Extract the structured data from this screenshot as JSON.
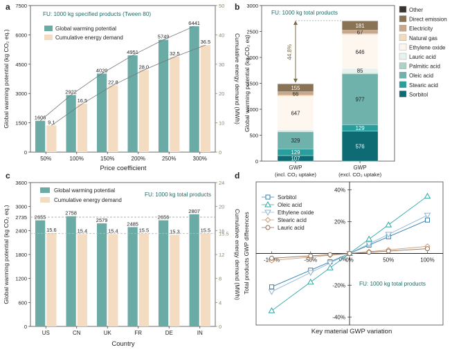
{
  "chart_data": [
    {
      "panel": "a",
      "type": "bar",
      "title": "FU: 1000 kg specified products (Tween 80)",
      "xlabel": "Price coefficient",
      "ylabel": "Global warming potential (kg CO₂ eq.)",
      "y2label": "Cumulative energy demand (MWh)",
      "categories": [
        "50%",
        "100%",
        "150%",
        "200%",
        "250%",
        "300%"
      ],
      "ylim": [
        0,
        7500
      ],
      "yticks": [
        0,
        1500,
        3000,
        4500,
        6000,
        7500
      ],
      "y2lim": [
        0,
        50
      ],
      "y2ticks": [
        0,
        10,
        20,
        30,
        40,
        50
      ],
      "series": [
        {
          "name": "Global warming potential",
          "axis": "left",
          "color": "#6aaba6",
          "values": [
            1606,
            2922,
            4020,
            4951,
            5749,
            6441
          ]
        },
        {
          "name": "Cumulative energy demand",
          "axis": "right",
          "color": "#f3dcc1",
          "values": [
            9.1,
            16.5,
            22.8,
            28.0,
            32.5,
            36.5
          ]
        }
      ],
      "labels": {
        "gwp": [
          "1606",
          "2922",
          "4020",
          "4951",
          "5749",
          "6441"
        ],
        "ced": [
          "9.1",
          "16.5",
          "22.8",
          "28.0",
          "32.5",
          "36.5"
        ]
      }
    },
    {
      "panel": "b",
      "type": "bar",
      "title": "FU: 1000 kg total products",
      "ylabel": "Global warming potential (kg CO₂ eq)",
      "ylim": [
        0,
        3000
      ],
      "yticks": [
        0,
        500,
        1000,
        1500,
        2000,
        2500,
        3000
      ],
      "categories": [
        {
          "line1": "GWP",
          "line2": "(incl. CO₂ uptake)"
        },
        {
          "line1": "GWP",
          "line2": "(excl. CO₂ uptake)"
        }
      ],
      "series": [
        {
          "name": "Sorbitol",
          "color": "#0e6b74",
          "values": [
            107,
            576
          ],
          "labels": [
            "107",
            "576"
          ]
        },
        {
          "name": "Stearic acid",
          "color": "#2a9d9d",
          "values": [
            129,
            129
          ],
          "labels": [
            "129",
            "129"
          ]
        },
        {
          "name": "Oleic acid",
          "color": "#6fb1ab",
          "values": [
            329,
            977
          ],
          "labels": [
            "329",
            "977"
          ]
        },
        {
          "name": "Palmitic acid",
          "color": "#a9d2c8",
          "values": [
            18,
            20
          ],
          "labels": [
            "",
            ""
          ]
        },
        {
          "name": "Lauric acid",
          "color": "#e6f2ee",
          "values": [
            20,
            85
          ],
          "labels": [
            "",
            "85"
          ]
        },
        {
          "name": "Ethylene oxide",
          "color": "#fdf7f0",
          "values": [
            647,
            646
          ],
          "labels": [
            "647",
            "646"
          ]
        },
        {
          "name": "Natural gas",
          "color": "#f2dcbd",
          "values": [
            20,
            22
          ],
          "labels": [
            "",
            ""
          ]
        },
        {
          "name": "Electricity",
          "color": "#c9a78a",
          "values": [
            66,
            67
          ],
          "labels": [
            "66",
            "67"
          ]
        },
        {
          "name": "Direct emission",
          "color": "#8a7355",
          "values": [
            155,
            181
          ],
          "labels": [
            "155",
            "181"
          ]
        },
        {
          "name": "Other",
          "color": "#3a3430",
          "values": [
            5,
            5
          ],
          "labels": [
            "",
            ""
          ]
        }
      ],
      "annotation": "44.8%"
    },
    {
      "panel": "c",
      "type": "bar",
      "title": "FU: 1000 kg total products",
      "xlabel": "Country",
      "ylabel": "Global warming potential (kg CO₂ eq.)",
      "y2label": "Cumulative energy demand (MWh)",
      "categories": [
        "US",
        "CN",
        "UK",
        "FR",
        "DE",
        "IN"
      ],
      "ylim": [
        0,
        3600
      ],
      "yticks": [
        0,
        600,
        1200,
        1800,
        2400,
        3000,
        3600
      ],
      "extra_ytick": "2735",
      "y2lim": [
        0,
        24
      ],
      "y2ticks": [
        0,
        4,
        8,
        12,
        16,
        20,
        24
      ],
      "extra_y2tick": "15.5",
      "reference_lines": [
        2735,
        15.5
      ],
      "series": [
        {
          "name": "Global warming potential",
          "axis": "left",
          "color": "#6aaba6",
          "values": [
            2655,
            2758,
            2579,
            2485,
            2656,
            2807
          ]
        },
        {
          "name": "Cumulative energy demand",
          "axis": "right",
          "color": "#f3dcc1",
          "values": [
            15.6,
            15.4,
            15.4,
            15.5,
            15.3,
            15.5
          ]
        }
      ],
      "labels": {
        "gwp": [
          "2655",
          "2758",
          "2579",
          "2485",
          "2656",
          "2807"
        ],
        "ced": [
          "15.6",
          "15.4",
          "15.4",
          "15.5",
          "15.3",
          "15.5"
        ]
      }
    },
    {
      "panel": "d",
      "type": "line",
      "title": "FU: 1000 kg total products",
      "xlabel": "Key material GWP variation",
      "ylabel": "Total products GWP differences",
      "x": [
        -100,
        -50,
        -25,
        0,
        25,
        50,
        100
      ],
      "xticks": [
        "-100%",
        "-50%",
        "0%",
        "50%",
        "100%"
      ],
      "yticks": [
        "-40%",
        "-20%",
        "0%",
        "20%",
        "40%"
      ],
      "xlim": [
        -120,
        120
      ],
      "ylim": [
        -45,
        45
      ],
      "series": [
        {
          "name": "Sorbitol",
          "marker": "square",
          "color": "#2d7fb0",
          "slope": 0.21
        },
        {
          "name": "Oleic acid",
          "marker": "triangle-up",
          "color": "#28a7a0",
          "slope": 0.36
        },
        {
          "name": "Ethylene oxide",
          "marker": "triangle-down",
          "color": "#8fb4cf",
          "slope": 0.24
        },
        {
          "name": "Stearic acid",
          "marker": "diamond",
          "color": "#d09a72",
          "slope": 0.045
        },
        {
          "name": "Lauric acid",
          "marker": "circle",
          "color": "#8c6a52",
          "slope": 0.03
        }
      ]
    }
  ],
  "panel_letters": [
    "a",
    "b",
    "c",
    "d"
  ]
}
